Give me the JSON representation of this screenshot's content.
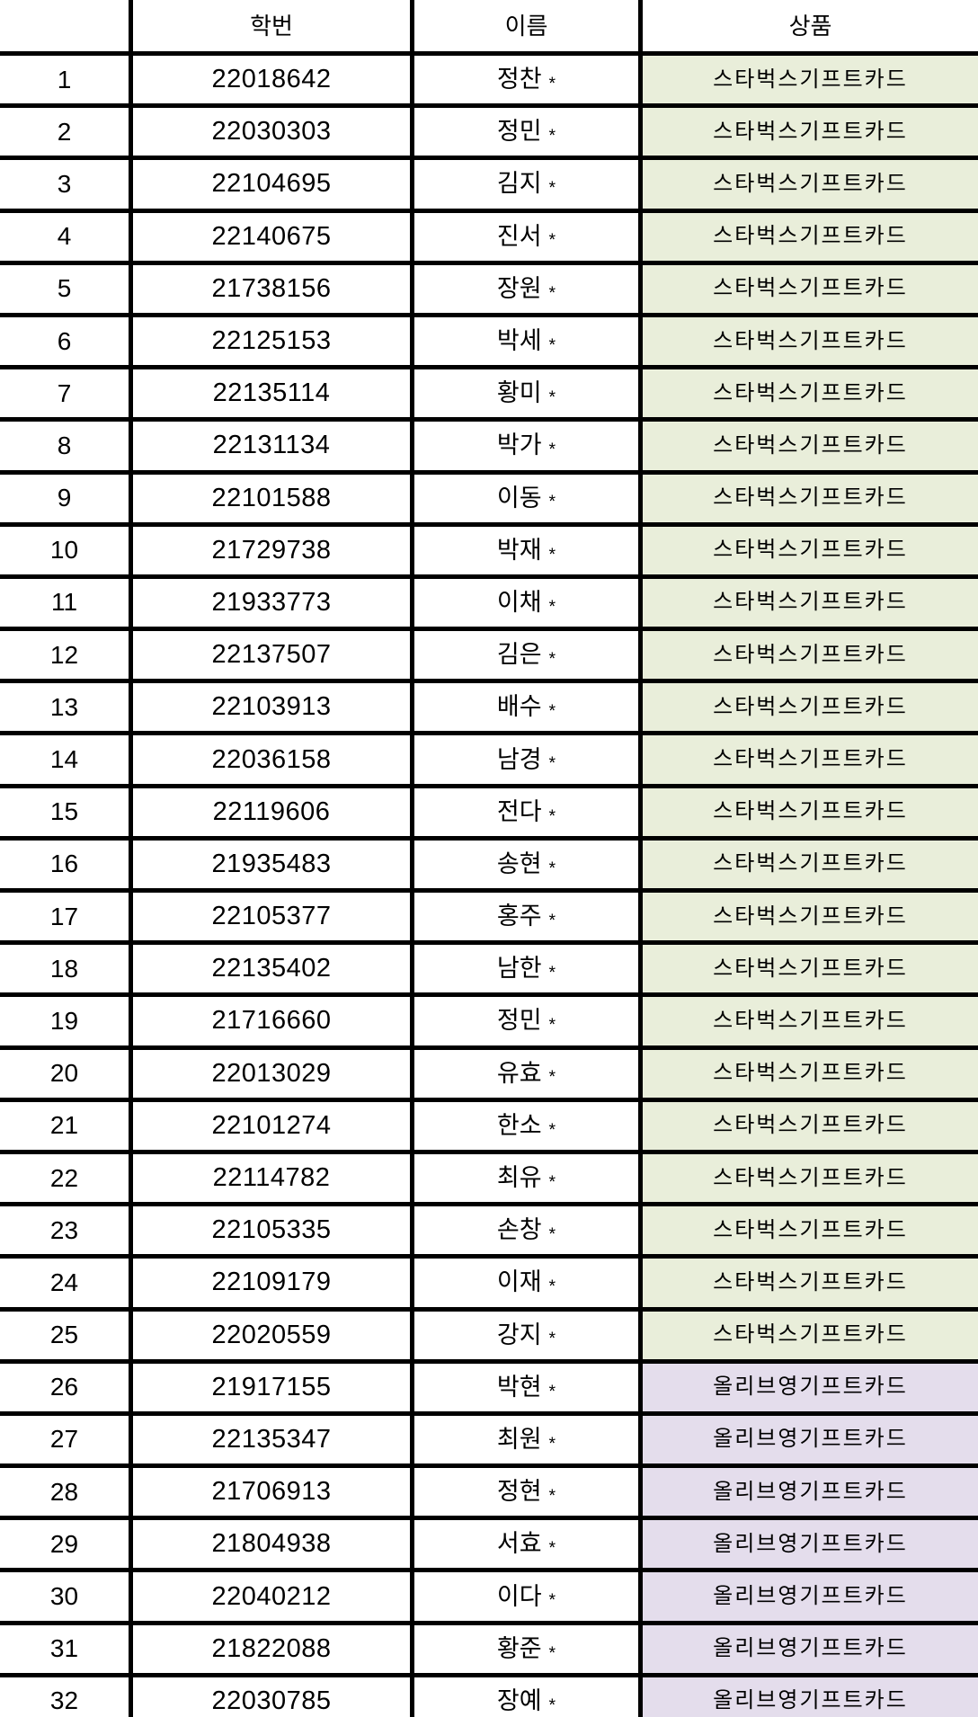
{
  "table": {
    "headers": [
      {
        "label": ""
      },
      {
        "label": "학번"
      },
      {
        "label": "이름"
      },
      {
        "label": "상품"
      }
    ],
    "prize_types": {
      "starbucks": {
        "label": "스타벅스기프트카드",
        "bg_color": "#e9eeda"
      },
      "oliveyoung": {
        "label": "올리브영기프트카드",
        "bg_color": "#e4ddec"
      }
    },
    "rows": [
      {
        "no": "1",
        "student_id": "22018642",
        "name": "정찬",
        "mask": "*",
        "prize": "starbucks"
      },
      {
        "no": "2",
        "student_id": "22030303",
        "name": "정민",
        "mask": "*",
        "prize": "starbucks"
      },
      {
        "no": "3",
        "student_id": "22104695",
        "name": "김지",
        "mask": "*",
        "prize": "starbucks"
      },
      {
        "no": "4",
        "student_id": "22140675",
        "name": "진서",
        "mask": "*",
        "prize": "starbucks"
      },
      {
        "no": "5",
        "student_id": "21738156",
        "name": "장원",
        "mask": "*",
        "prize": "starbucks"
      },
      {
        "no": "6",
        "student_id": "22125153",
        "name": "박세",
        "mask": "*",
        "prize": "starbucks"
      },
      {
        "no": "7",
        "student_id": "22135114",
        "name": "황미",
        "mask": "*",
        "prize": "starbucks"
      },
      {
        "no": "8",
        "student_id": "22131134",
        "name": "박가",
        "mask": "*",
        "prize": "starbucks"
      },
      {
        "no": "9",
        "student_id": "22101588",
        "name": "이동",
        "mask": "*",
        "prize": "starbucks"
      },
      {
        "no": "10",
        "student_id": "21729738",
        "name": "박재",
        "mask": "*",
        "prize": "starbucks"
      },
      {
        "no": "11",
        "student_id": "21933773",
        "name": "이채",
        "mask": "*",
        "prize": "starbucks"
      },
      {
        "no": "12",
        "student_id": "22137507",
        "name": "김은",
        "mask": "*",
        "prize": "starbucks"
      },
      {
        "no": "13",
        "student_id": "22103913",
        "name": "배수",
        "mask": "*",
        "prize": "starbucks"
      },
      {
        "no": "14",
        "student_id": "22036158",
        "name": "남경",
        "mask": "*",
        "prize": "starbucks"
      },
      {
        "no": "15",
        "student_id": "22119606",
        "name": "전다",
        "mask": "*",
        "prize": "starbucks"
      },
      {
        "no": "16",
        "student_id": "21935483",
        "name": "송현",
        "mask": "*",
        "prize": "starbucks"
      },
      {
        "no": "17",
        "student_id": "22105377",
        "name": "홍주",
        "mask": "*",
        "prize": "starbucks"
      },
      {
        "no": "18",
        "student_id": "22135402",
        "name": "남한",
        "mask": "*",
        "prize": "starbucks"
      },
      {
        "no": "19",
        "student_id": "21716660",
        "name": "정민",
        "mask": "*",
        "prize": "starbucks"
      },
      {
        "no": "20",
        "student_id": "22013029",
        "name": "유효",
        "mask": "*",
        "prize": "starbucks"
      },
      {
        "no": "21",
        "student_id": "22101274",
        "name": "한소",
        "mask": "*",
        "prize": "starbucks"
      },
      {
        "no": "22",
        "student_id": "22114782",
        "name": "최유",
        "mask": "*",
        "prize": "starbucks"
      },
      {
        "no": "23",
        "student_id": "22105335",
        "name": "손창",
        "mask": "*",
        "prize": "starbucks"
      },
      {
        "no": "24",
        "student_id": "22109179",
        "name": "이재",
        "mask": "*",
        "prize": "starbucks"
      },
      {
        "no": "25",
        "student_id": "22020559",
        "name": "강지",
        "mask": "*",
        "prize": "starbucks"
      },
      {
        "no": "26",
        "student_id": "21917155",
        "name": "박현",
        "mask": "*",
        "prize": "oliveyoung"
      },
      {
        "no": "27",
        "student_id": "22135347",
        "name": "최원",
        "mask": "*",
        "prize": "oliveyoung"
      },
      {
        "no": "28",
        "student_id": "21706913",
        "name": "정현",
        "mask": "*",
        "prize": "oliveyoung"
      },
      {
        "no": "29",
        "student_id": "21804938",
        "name": "서효",
        "mask": "*",
        "prize": "oliveyoung"
      },
      {
        "no": "30",
        "student_id": "22040212",
        "name": "이다",
        "mask": "*",
        "prize": "oliveyoung"
      },
      {
        "no": "31",
        "student_id": "21822088",
        "name": "황준",
        "mask": "*",
        "prize": "oliveyoung"
      },
      {
        "no": "32",
        "student_id": "22030785",
        "name": "장예",
        "mask": "*",
        "prize": "oliveyoung"
      }
    ]
  },
  "colors": {
    "border": "#000000",
    "text": "#000000",
    "background": "#ffffff",
    "starbucks_row_bg": "#e9eeda",
    "oliveyoung_row_bg": "#e4ddec"
  }
}
